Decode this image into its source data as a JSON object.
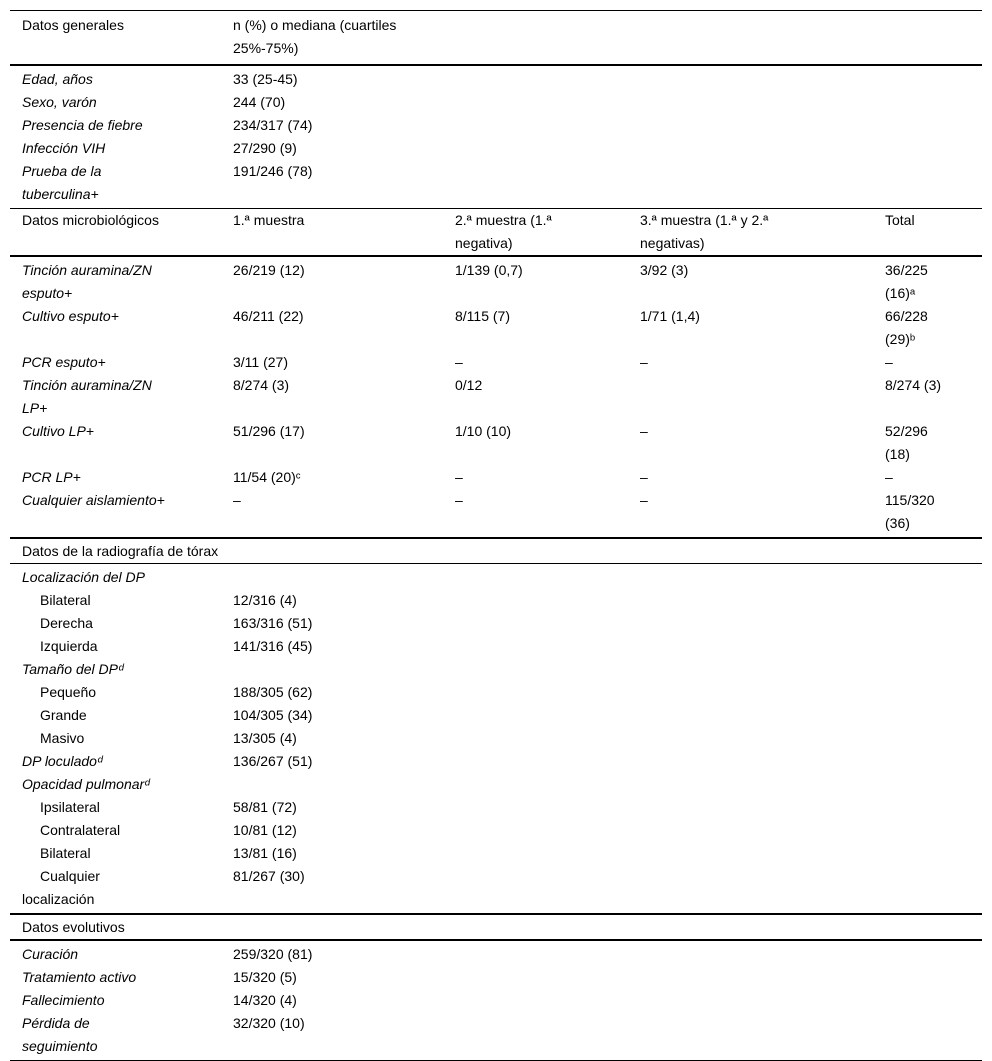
{
  "colors": {
    "text": "#000000",
    "background": "#ffffff",
    "rule": "#000000"
  },
  "general": {
    "header": {
      "c1": "Datos generales",
      "c2": "n (%) o mediana (cuartiles\n25%-75%)"
    },
    "rows": [
      {
        "label": "Edad, años",
        "value": "33 (25-45)"
      },
      {
        "label": "Sexo, varón",
        "value": "244 (70)"
      },
      {
        "label": "Presencia de fiebre",
        "value": "234/317 (74)"
      },
      {
        "label": "Infección VIH",
        "value": "27/290 (9)"
      },
      {
        "label": "Prueba de la\ntuberculina+",
        "value": "191/246 (78)"
      }
    ]
  },
  "micro": {
    "header": {
      "c1": "Datos microbiológicos",
      "c2": "1.ª muestra",
      "c3": "2.ª muestra (1.ª\nnegativa)",
      "c4": "3.ª muestra (1.ª y 2.ª\nnegativas)",
      "c5": "Total"
    },
    "rows": [
      {
        "label": "Tinción auramina/ZN\nesputo+",
        "c2": "26/219 (12)",
        "c3": "1/139 (0,7)",
        "c4": "3/92 (3)",
        "c5": "36/225\n(16)ᵃ"
      },
      {
        "label": "Cultivo esputo+",
        "c2": "46/211 (22)",
        "c3": "8/115 (7)",
        "c4": "1/71 (1,4)",
        "c5": "66/228\n(29)ᵇ"
      },
      {
        "label": "PCR esputo+",
        "c2": "3/11 (27)",
        "c3": "–",
        "c4": "–",
        "c5": "–"
      },
      {
        "label": "Tinción auramina/ZN\nLP+",
        "c2": "8/274 (3)",
        "c3": "0/12",
        "c4": "",
        "c5": "8/274 (3)"
      },
      {
        "label": "Cultivo LP+",
        "c2": "51/296 (17)",
        "c3": "1/10 (10)",
        "c4": "–",
        "c5": "52/296\n(18)"
      },
      {
        "label": "PCR LP+",
        "c2": "11/54 (20)ᶜ",
        "c3": "–",
        "c4": "–",
        "c5": "–"
      },
      {
        "label": "Cualquier aislamiento+",
        "c2": "–",
        "c3": "–",
        "c4": "–",
        "c5": "115/320\n(36)"
      }
    ]
  },
  "xray": {
    "title": "Datos de la radiografía de tórax",
    "rows": [
      {
        "label": "Localización del DP",
        "value": ""
      },
      {
        "label": "Bilateral",
        "value": "12/316 (4)"
      },
      {
        "label": "Derecha",
        "value": "163/316 (51)"
      },
      {
        "label": "Izquierda",
        "value": "141/316 (45)"
      },
      {
        "label": "Tamaño del DPᵈ",
        "value": ""
      },
      {
        "label": "Pequeño",
        "value": "188/305 (62)"
      },
      {
        "label": "Grande",
        "value": "104/305 (34)"
      },
      {
        "label": "Masivo",
        "value": "13/305 (4)"
      },
      {
        "label": "DP loculadoᵈ",
        "value": "136/267 (51)"
      },
      {
        "label": "Opacidad pulmonarᵈ",
        "value": ""
      },
      {
        "label": "Ipsilateral",
        "value": "58/81 (72)"
      },
      {
        "label": "Contralateral",
        "value": "10/81 (12)"
      },
      {
        "label": "Bilateral",
        "value": "13/81 (16)"
      },
      {
        "label": "Cualquier\nlocalización",
        "value": "81/267 (30)"
      }
    ]
  },
  "evolution": {
    "title": "Datos evolutivos",
    "rows": [
      {
        "label": "Curación",
        "value": "259/320 (81)"
      },
      {
        "label": "Tratamiento activo",
        "value": "15/320 (5)"
      },
      {
        "label": "Fallecimiento",
        "value": "14/320 (4)"
      },
      {
        "label": "Pérdida de\nseguimiento",
        "value": "32/320 (10)"
      }
    ]
  }
}
